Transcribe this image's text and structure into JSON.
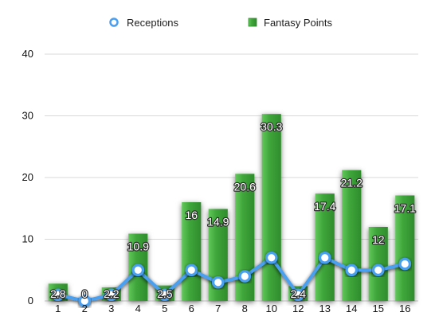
{
  "chart_data": {
    "type": "bar",
    "categories": [
      "1",
      "2",
      "3",
      "4",
      "5",
      "6",
      "7",
      "8",
      "10",
      "12",
      "13",
      "14",
      "15",
      "16"
    ],
    "series": [
      {
        "name": "Fantasy Points",
        "kind": "bar",
        "values": [
          2.8,
          0,
          2.2,
          10.9,
          2.5,
          16,
          14.9,
          20.6,
          30.3,
          2.4,
          17.4,
          21.2,
          12,
          17.1
        ],
        "value_labels": [
          "2.8",
          "0",
          "2.2",
          "10.9",
          "2.5",
          "16",
          "14.9",
          "20.6",
          "30.3",
          "2.4",
          "17.4",
          "21.2",
          "12",
          "17.1"
        ],
        "color": "#3fa63b"
      },
      {
        "name": "Receptions",
        "kind": "line",
        "values": [
          1,
          0,
          1,
          5,
          1,
          5,
          3,
          4,
          7,
          1,
          7,
          5,
          5,
          6
        ],
        "color": "#4a9ff0"
      }
    ],
    "yticks": [
      "0",
      "10",
      "20",
      "30",
      "40"
    ],
    "ylim": [
      0,
      40
    ],
    "grid": true,
    "legend_position": "top-center"
  }
}
